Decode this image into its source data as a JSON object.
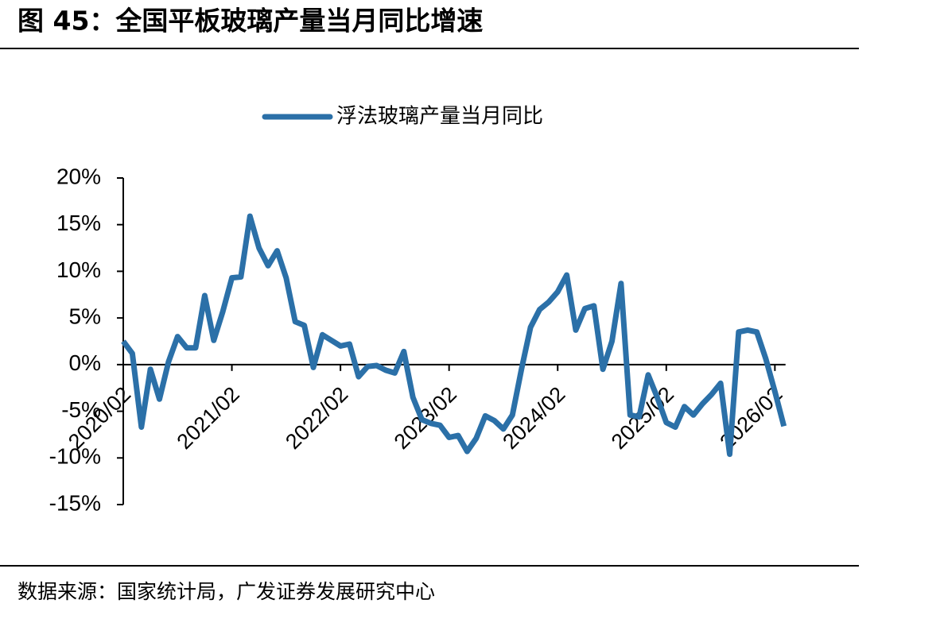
{
  "chart_data": {
    "type": "line",
    "title": "图 45：全国平板玻璃产量当月同比增速",
    "source": "数据来源：国家统计局，广发证券发展研究中心",
    "categories": [
      "2020/02",
      null,
      null,
      null,
      null,
      null,
      null,
      null,
      null,
      null,
      null,
      null,
      "2021/02",
      null,
      null,
      null,
      null,
      null,
      null,
      null,
      null,
      null,
      null,
      null,
      "2022/02",
      null,
      null,
      null,
      null,
      null,
      null,
      null,
      null,
      null,
      null,
      null,
      "2023/02",
      null,
      null,
      null,
      null,
      null,
      null,
      null,
      null,
      null,
      null,
      null,
      "2024/02",
      null,
      null,
      null,
      null,
      null,
      null,
      null,
      null,
      null,
      null,
      null,
      "2025/02",
      null,
      null,
      null,
      null,
      null,
      null,
      null,
      null,
      null,
      null,
      null,
      "2026/02",
      null
    ],
    "series": [
      {
        "name": "浮法玻璃产量当月同比",
        "color": "#2b70a8",
        "values": [
          2.5,
          1.2,
          -6.7,
          -0.5,
          -3.7,
          0.3,
          3.0,
          1.8,
          1.8,
          7.4,
          2.6,
          5.7,
          9.3,
          9.4,
          15.9,
          12.5,
          10.6,
          12.2,
          9.3,
          4.6,
          4.2,
          -0.3,
          3.2,
          2.6,
          2.0,
          2.2,
          -1.3,
          -0.2,
          -0.1,
          -0.6,
          -0.9,
          1.4,
          -3.5,
          -5.9,
          -6.3,
          -6.5,
          -7.8,
          -7.6,
          -9.3,
          -7.9,
          -5.5,
          -6.0,
          -6.9,
          -5.4,
          -0.5,
          4.0,
          5.9,
          6.7,
          7.8,
          9.6,
          3.7,
          6.0,
          6.3,
          -0.5,
          2.5,
          8.7,
          -5.4,
          -5.6,
          -1.1,
          -3.5,
          -6.2,
          -6.7,
          -4.5,
          -5.4,
          -4.2,
          -3.2,
          -2.0,
          -9.6,
          3.5,
          3.7,
          3.5,
          0.6,
          -2.9,
          -6.6
        ]
      }
    ],
    "ylim": [
      -15,
      20
    ],
    "yticks": [
      {
        "value": 20,
        "label": "20%"
      },
      {
        "value": 15,
        "label": "15%"
      },
      {
        "value": 10,
        "label": "10%"
      },
      {
        "value": 5,
        "label": "5%"
      },
      {
        "value": 0,
        "label": "0%"
      },
      {
        "value": -5,
        "label": "-5%"
      },
      {
        "value": -10,
        "label": "-10%"
      },
      {
        "value": -15,
        "label": "-15%"
      }
    ],
    "grid": false
  }
}
